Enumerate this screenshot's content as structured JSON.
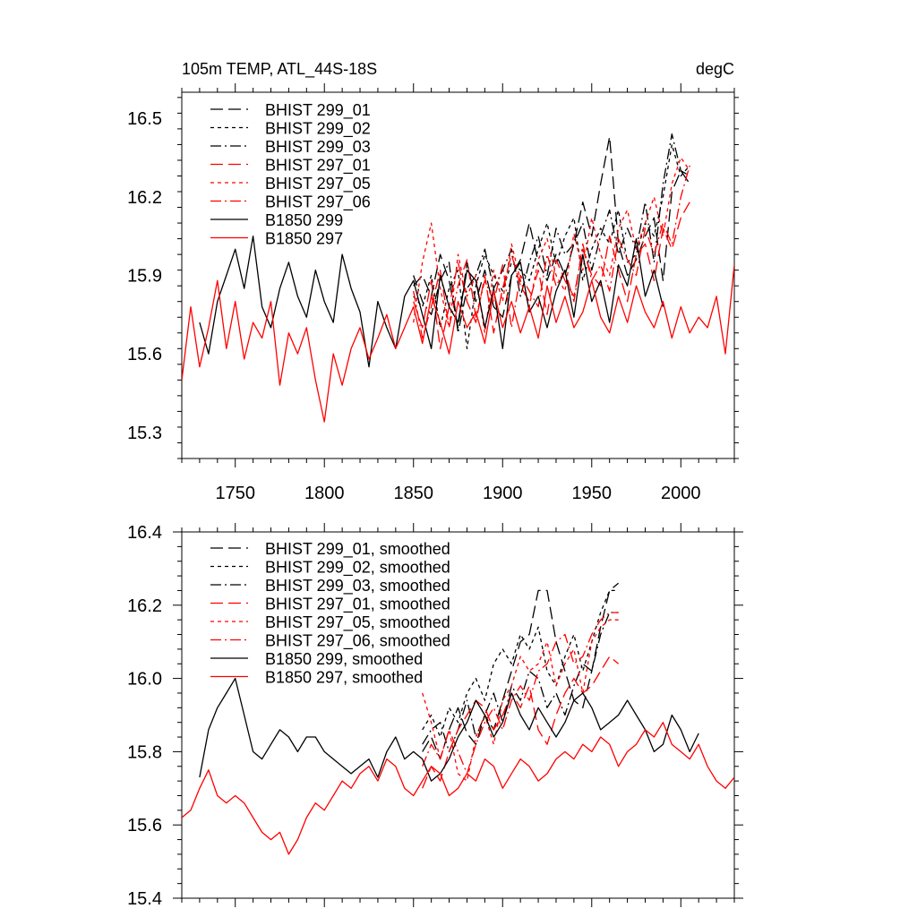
{
  "chart_data": [
    {
      "type": "line",
      "title_left": "105m TEMP, ATL_44S-18S",
      "title_right": "degC",
      "xlim": [
        1720,
        2030
      ],
      "ylim": [
        15.2,
        16.6
      ],
      "x_ticks": [
        1750,
        1800,
        1850,
        1900,
        1950,
        2000
      ],
      "x_tick_labels": [
        "1750",
        "1800",
        "1850",
        "1900",
        "1950",
        "2000"
      ],
      "y_ticks": [
        15.3,
        15.6,
        15.9,
        16.2,
        16.5
      ],
      "y_tick_labels": [
        "15.3",
        "15.6",
        "15.9",
        "16.2",
        "16.5"
      ],
      "series": [
        {
          "name": "BHIST 299_01",
          "color": "#000000",
          "dash": "long-dash",
          "x0": 1850,
          "step": 5,
          "values": [
            15.86,
            15.9,
            15.82,
            15.98,
            15.88,
            15.7,
            15.95,
            15.8,
            15.92,
            15.78,
            15.74,
            15.9,
            15.96,
            16.1,
            15.95,
            15.88,
            15.98,
            15.9,
            16.02,
            16.18,
            16.05,
            16.25,
            16.43,
            16.02,
            15.9,
            15.96,
            16.05,
            16.12,
            15.88,
            16.22,
            16.3,
            16.25
          ]
        },
        {
          "name": "BHIST 299_02",
          "color": "#000000",
          "dash": "short-dash",
          "x0": 1850,
          "step": 5,
          "values": [
            15.82,
            15.78,
            15.9,
            15.7,
            15.85,
            15.92,
            15.62,
            15.86,
            15.98,
            15.9,
            15.84,
            15.95,
            15.92,
            15.88,
            16.0,
            16.1,
            15.94,
            16.05,
            16.12,
            15.88,
            16.0,
            16.08,
            16.02,
            16.15,
            15.95,
            15.98,
            16.1,
            16.05,
            16.2,
            16.4,
            16.28,
            16.32
          ]
        },
        {
          "name": "BHIST 299_03",
          "color": "#000000",
          "dash": "dash-dot",
          "x0": 1850,
          "step": 5,
          "values": [
            15.9,
            15.8,
            15.75,
            15.88,
            15.95,
            15.68,
            15.85,
            15.9,
            16.0,
            15.85,
            15.92,
            16.0,
            15.82,
            15.95,
            16.05,
            15.9,
            16.08,
            15.98,
            16.02,
            16.1,
            15.92,
            16.05,
            16.15,
            15.98,
            16.08,
            16.0,
            16.18,
            15.95,
            16.25,
            16.44,
            16.3,
            16.28
          ]
        },
        {
          "name": "BHIST 297_01",
          "color": "#ff0000",
          "dash": "long-dash",
          "x0": 1850,
          "step": 5,
          "values": [
            15.8,
            15.7,
            15.88,
            15.62,
            15.78,
            15.95,
            15.8,
            15.72,
            15.9,
            15.68,
            15.85,
            15.98,
            15.86,
            15.8,
            15.92,
            15.75,
            15.96,
            15.88,
            15.82,
            16.0,
            15.9,
            15.86,
            16.05,
            15.92,
            15.8,
            15.98,
            16.02,
            15.88,
            16.08,
            16.0,
            16.12,
            16.18
          ]
        },
        {
          "name": "BHIST 297_05",
          "color": "#ff0000",
          "dash": "short-dash",
          "x0": 1850,
          "step": 5,
          "values": [
            15.72,
            15.95,
            16.1,
            15.85,
            15.7,
            15.98,
            15.82,
            15.9,
            15.68,
            15.92,
            15.8,
            16.02,
            15.88,
            15.78,
            15.96,
            16.04,
            15.9,
            15.84,
            16.06,
            15.92,
            16.12,
            15.98,
            15.9,
            16.08,
            16.15,
            16.0,
            16.1,
            16.2,
            16.05,
            16.25,
            16.35,
            16.3
          ]
        },
        {
          "name": "BHIST 297_06",
          "color": "#ff0000",
          "dash": "dash-dot",
          "x0": 1850,
          "step": 5,
          "values": [
            15.84,
            15.66,
            15.78,
            15.92,
            15.7,
            15.86,
            15.96,
            15.74,
            15.88,
            15.8,
            15.94,
            15.7,
            15.9,
            15.84,
            15.78,
            15.98,
            15.86,
            15.92,
            15.8,
            16.02,
            15.88,
            15.94,
            15.84,
            16.04,
            15.96,
            15.9,
            16.08,
            15.98,
            16.1,
            16.02,
            16.2,
            16.32
          ]
        },
        {
          "name": "B1850 299",
          "color": "#000000",
          "dash": "solid",
          "x0": 1730,
          "step": 5,
          "values": [
            15.72,
            15.6,
            15.8,
            15.9,
            16.0,
            15.85,
            16.05,
            15.78,
            15.7,
            15.85,
            15.95,
            15.82,
            15.74,
            15.92,
            15.8,
            15.72,
            15.98,
            15.85,
            15.76,
            15.55,
            15.8,
            15.7,
            15.62,
            15.82,
            15.88,
            15.75,
            15.62,
            15.9,
            15.78,
            15.72,
            15.92,
            15.88,
            15.7,
            15.85,
            15.62,
            15.9,
            15.95,
            15.76,
            15.82,
            15.7,
            15.84,
            15.92,
            15.74,
            15.98,
            15.8,
            15.88,
            15.72,
            15.94,
            15.86,
            16.04,
            15.82,
            15.92,
            15.78
          ]
        },
        {
          "name": "B1850 297",
          "color": "#ff0000",
          "dash": "solid",
          "x0": 1720,
          "step": 5,
          "values": [
            15.5,
            15.78,
            15.55,
            15.7,
            15.88,
            15.62,
            15.8,
            15.58,
            15.72,
            15.66,
            15.8,
            15.48,
            15.68,
            15.6,
            15.7,
            15.5,
            15.34,
            15.6,
            15.48,
            15.62,
            15.7,
            15.58,
            15.66,
            15.75,
            15.62,
            15.7,
            15.78,
            15.64,
            15.82,
            15.72,
            15.6,
            15.8,
            15.7,
            15.76,
            15.64,
            15.84,
            15.7,
            15.8,
            15.68,
            15.78,
            15.66,
            15.86,
            15.72,
            15.82,
            15.7,
            15.76,
            15.88,
            15.74,
            15.68,
            15.82,
            15.72,
            15.86,
            15.76,
            15.7,
            15.8,
            15.66,
            15.78,
            15.68,
            15.74,
            15.7,
            15.82,
            15.6,
            15.94
          ]
        }
      ]
    },
    {
      "type": "line",
      "xlim": [
        1720,
        2030
      ],
      "ylim": [
        15.4,
        16.4
      ],
      "x_ticks": [
        1750,
        1800,
        1850,
        1900,
        1950,
        2000
      ],
      "y_ticks": [
        15.4,
        15.6,
        15.8,
        16.0,
        16.2,
        16.4
      ],
      "y_tick_labels": [
        "15.4",
        "15.6",
        "15.8",
        "16.0",
        "16.2",
        "16.4"
      ],
      "series": [
        {
          "name": "BHIST 299_01, smoothed",
          "color": "#000000",
          "dash": "long-dash",
          "x0": 1855,
          "step": 5,
          "values": [
            15.8,
            15.84,
            15.78,
            15.86,
            15.92,
            15.85,
            15.82,
            15.9,
            15.86,
            15.94,
            16.02,
            16.1,
            16.12,
            16.24,
            16.24,
            16.1,
            16.02,
            15.94,
            15.92,
            16.02,
            16.14,
            16.24,
            16.26
          ]
        },
        {
          "name": "BHIST 299_02, smoothed",
          "color": "#000000",
          "dash": "short-dash",
          "x0": 1855,
          "step": 5,
          "values": [
            15.86,
            15.9,
            15.84,
            15.92,
            15.88,
            15.96,
            16.0,
            15.94,
            16.04,
            16.08,
            16.04,
            16.12,
            16.08,
            16.14,
            16.02,
            15.98,
            16.06,
            16.12,
            16.02,
            16.1,
            16.18,
            16.24,
            16.24
          ]
        },
        {
          "name": "BHIST 299_03, smoothed",
          "color": "#000000",
          "dash": "dash-dot",
          "x0": 1855,
          "step": 5,
          "values": [
            15.82,
            15.86,
            15.88,
            15.8,
            15.86,
            15.94,
            15.84,
            15.9,
            15.96,
            15.88,
            15.98,
            15.94,
            16.02,
            16.0,
            15.92,
            15.96,
            15.9,
            15.98,
            16.04,
            16.02,
            16.12,
            16.18,
            16.18
          ]
        },
        {
          "name": "BHIST 297_01, smoothed",
          "color": "#ff0000",
          "dash": "long-dash",
          "x0": 1855,
          "step": 5,
          "values": [
            15.7,
            15.76,
            15.72,
            15.8,
            15.86,
            15.9,
            15.94,
            15.92,
            15.86,
            15.9,
            15.96,
            15.92,
            15.98,
            15.86,
            15.82,
            15.9,
            15.96,
            16.0,
            15.96,
            15.98,
            16.02,
            16.06,
            16.04
          ]
        },
        {
          "name": "BHIST 297_05, smoothed",
          "color": "#ff0000",
          "dash": "short-dash",
          "x0": 1855,
          "step": 5,
          "values": [
            15.96,
            15.88,
            15.78,
            15.86,
            15.74,
            15.72,
            15.84,
            15.9,
            15.82,
            15.94,
            15.98,
            16.06,
            16.02,
            16.04,
            16.1,
            15.98,
            16.04,
            16.08,
            15.96,
            16.1,
            16.14,
            16.16,
            16.16
          ]
        },
        {
          "name": "BHIST 297_06, smoothed",
          "color": "#ff0000",
          "dash": "dash-dot",
          "x0": 1855,
          "step": 5,
          "values": [
            15.76,
            15.82,
            15.78,
            15.86,
            15.8,
            15.74,
            15.82,
            15.88,
            15.92,
            15.86,
            15.94,
            15.98,
            15.94,
            16.02,
            16.04,
            16.1,
            16.12,
            16.04,
            16.06,
            16.12,
            16.16,
            16.18,
            16.18
          ]
        },
        {
          "name": "B1850 299, smoothed",
          "color": "#000000",
          "dash": "solid",
          "x0": 1730,
          "step": 5,
          "values": [
            15.73,
            15.86,
            15.92,
            15.96,
            16.0,
            15.9,
            15.8,
            15.78,
            15.82,
            15.86,
            15.84,
            15.8,
            15.84,
            15.84,
            15.8,
            15.78,
            15.76,
            15.74,
            15.76,
            15.78,
            15.73,
            15.8,
            15.84,
            15.78,
            15.8,
            15.78,
            15.72,
            15.74,
            15.78,
            15.84,
            15.88,
            15.94,
            15.9,
            15.84,
            15.88,
            15.96,
            15.9,
            15.86,
            15.92,
            15.88,
            15.84,
            15.88,
            15.94,
            15.96,
            15.92,
            15.86,
            15.88,
            15.9,
            15.94,
            15.9,
            15.86,
            15.8,
            15.82,
            15.9,
            15.86,
            15.8,
            15.85
          ]
        },
        {
          "name": "B1850 297, smoothed",
          "color": "#ff0000",
          "dash": "solid",
          "x0": 1720,
          "step": 5,
          "values": [
            15.62,
            15.64,
            15.7,
            15.75,
            15.68,
            15.66,
            15.68,
            15.66,
            15.62,
            15.58,
            15.56,
            15.58,
            15.52,
            15.56,
            15.62,
            15.66,
            15.64,
            15.68,
            15.72,
            15.7,
            15.74,
            15.76,
            15.72,
            15.78,
            15.76,
            15.7,
            15.68,
            15.72,
            15.76,
            15.74,
            15.68,
            15.7,
            15.74,
            15.72,
            15.78,
            15.76,
            15.7,
            15.74,
            15.78,
            15.76,
            15.72,
            15.74,
            15.78,
            15.8,
            15.78,
            15.82,
            15.8,
            15.84,
            15.82,
            15.76,
            15.8,
            15.82,
            15.86,
            15.84,
            15.88,
            15.82,
            15.8,
            15.78,
            15.82,
            15.76,
            15.72,
            15.7,
            15.73
          ]
        }
      ]
    }
  ]
}
